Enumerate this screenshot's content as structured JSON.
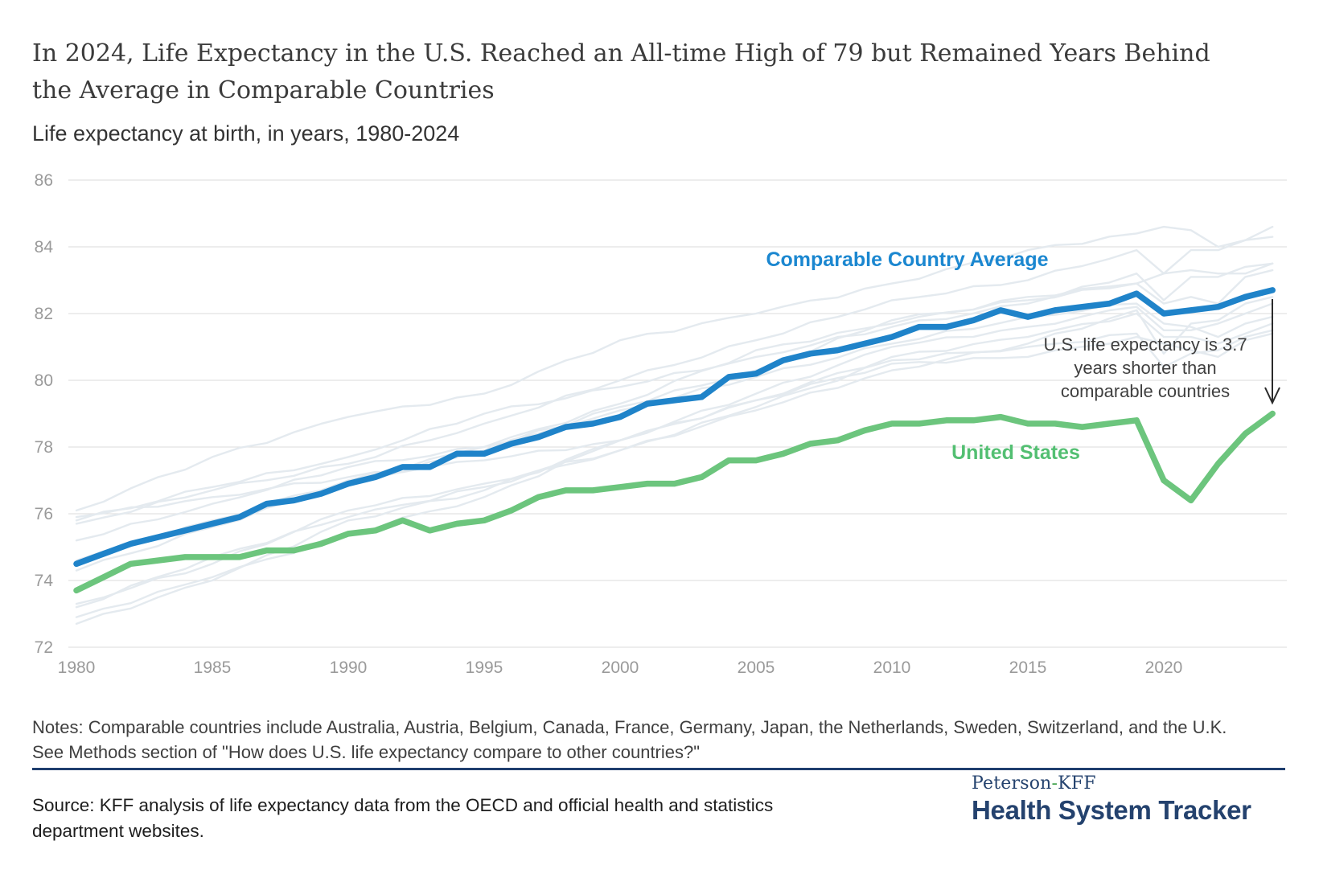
{
  "chart_data": {
    "type": "line",
    "title": "In 2024, Life Expectancy in the U.S. Reached an All-time High of 79 but Remained Years Behind the Average in Comparable Countries",
    "subtitle": "Life expectancy at birth, in years, 1980-2024",
    "years": [
      1980,
      1981,
      1982,
      1983,
      1984,
      1985,
      1986,
      1987,
      1988,
      1989,
      1990,
      1991,
      1992,
      1993,
      1994,
      1995,
      1996,
      1997,
      1998,
      1999,
      2000,
      2001,
      2002,
      2003,
      2004,
      2005,
      2006,
      2007,
      2008,
      2009,
      2010,
      2011,
      2012,
      2013,
      2014,
      2015,
      2016,
      2017,
      2018,
      2019,
      2020,
      2021,
      2022,
      2023,
      2024
    ],
    "xlim": [
      1980,
      2024
    ],
    "ylim": [
      72,
      86
    ],
    "x_ticks": [
      1980,
      1985,
      1990,
      1995,
      2000,
      2005,
      2010,
      2015,
      2020
    ],
    "y_ticks": [
      72,
      74,
      76,
      78,
      80,
      82,
      84,
      86
    ],
    "grid": "horizontal",
    "legend_position": "inline-labels",
    "series": [
      {
        "name": "Comparable Country Average",
        "color": "#1f83c9",
        "label_color": "#1b87d0",
        "values": [
          74.5,
          74.8,
          75.1,
          75.3,
          75.5,
          75.7,
          75.9,
          76.3,
          76.4,
          76.6,
          76.9,
          77.1,
          77.4,
          77.4,
          77.8,
          77.8,
          78.1,
          78.3,
          78.6,
          78.7,
          78.9,
          79.3,
          79.4,
          79.5,
          80.1,
          80.2,
          80.6,
          80.8,
          80.9,
          81.1,
          81.3,
          81.6,
          81.6,
          81.8,
          82.1,
          81.9,
          82.1,
          82.2,
          82.3,
          82.6,
          82.0,
          82.1,
          82.2,
          82.5,
          82.7
        ]
      },
      {
        "name": "United States",
        "color": "#6cc57d",
        "label_color": "#53bf72",
        "values": [
          73.7,
          74.1,
          74.5,
          74.6,
          74.7,
          74.7,
          74.7,
          74.9,
          74.9,
          75.1,
          75.4,
          75.5,
          75.8,
          75.5,
          75.7,
          75.8,
          76.1,
          76.5,
          76.7,
          76.7,
          76.8,
          76.9,
          76.9,
          77.1,
          77.6,
          77.6,
          77.8,
          78.1,
          78.2,
          78.5,
          78.7,
          78.7,
          78.8,
          78.8,
          78.9,
          78.7,
          78.7,
          78.6,
          78.7,
          78.8,
          77.0,
          76.4,
          77.5,
          78.4,
          79.0
        ]
      }
    ],
    "background_countries": {
      "note": "Unlabeled light-gray lines showing the 11 individual comparable countries (values estimated from pixels)",
      "color": "#e4eaef",
      "keypoint_years": [
        1980,
        1985,
        1990,
        1995,
        2000,
        2005,
        2010,
        2015,
        2019,
        2020,
        2021,
        2022,
        2023,
        2024
      ],
      "series": [
        [
          74.6,
          75.8,
          77.0,
          78.0,
          79.3,
          80.9,
          81.7,
          82.5,
          82.9,
          83.2,
          83.3,
          83.2,
          83.2,
          83.5
        ],
        [
          72.7,
          74.0,
          75.8,
          76.7,
          78.2,
          79.4,
          80.7,
          81.3,
          82.0,
          81.3,
          81.3,
          81.1,
          81.4,
          81.7
        ],
        [
          73.3,
          74.5,
          76.1,
          76.9,
          77.9,
          79.1,
          80.3,
          81.1,
          82.1,
          80.8,
          81.7,
          81.8,
          82.3,
          82.5
        ],
        [
          75.2,
          76.3,
          77.4,
          78.0,
          79.1,
          80.1,
          81.1,
          81.9,
          82.3,
          81.7,
          81.6,
          81.3,
          81.7,
          81.9
        ],
        [
          74.3,
          75.6,
          76.9,
          77.9,
          79.2,
          80.3,
          81.8,
          82.4,
          82.9,
          82.3,
          82.5,
          82.3,
          83.1,
          83.3
        ],
        [
          72.9,
          74.1,
          75.4,
          76.5,
          78.2,
          79.4,
          80.5,
          80.7,
          81.3,
          81.1,
          80.9,
          80.7,
          81.2,
          81.4
        ],
        [
          76.1,
          77.7,
          78.9,
          79.6,
          81.2,
          82.0,
          82.9,
          83.9,
          84.4,
          84.6,
          84.5,
          84.0,
          84.2,
          84.6
        ],
        [
          75.9,
          76.5,
          77.1,
          77.6,
          78.2,
          79.6,
          81.0,
          81.6,
          82.2,
          81.5,
          81.5,
          81.7,
          82.0,
          82.3
        ],
        [
          75.8,
          76.8,
          77.7,
          79.0,
          79.8,
          80.7,
          81.6,
          82.3,
          83.2,
          82.4,
          83.1,
          83.1,
          83.4,
          83.5
        ],
        [
          75.7,
          76.7,
          77.5,
          78.7,
          80.0,
          81.2,
          82.4,
          83.0,
          83.9,
          83.2,
          83.9,
          83.9,
          84.2,
          84.3
        ],
        [
          73.2,
          74.7,
          75.9,
          76.8,
          77.9,
          79.2,
          80.6,
          81.0,
          81.4,
          80.4,
          80.8,
          80.9,
          81.3,
          81.5
        ]
      ]
    },
    "annotation": {
      "lines": [
        "U.S. life expectancy is 3.7",
        "years shorter than",
        "comparable countries"
      ],
      "color": "#3f3f3f",
      "arrow_color": "#2b2b2b"
    },
    "axis_label_color": "#9a9a9a",
    "gridline_color": "#e2e2e2"
  },
  "footer": {
    "notes_lines": [
      "Notes: Comparable countries include Australia, Austria, Belgium, Canada, France, Germany, Japan, the Netherlands, Sweden, Switzerland, and the U.K.",
      "See Methods section of \"How does U.S. life expectancy compare to other countries?\""
    ],
    "source_lines": [
      "Source: KFF analysis of life expectancy data from the OECD and official health and statistics",
      "department websites."
    ]
  },
  "logo": {
    "top_left": "Peterson",
    "hyphen": "-",
    "top_right": "KFF",
    "bottom": "Health System Tracker"
  }
}
